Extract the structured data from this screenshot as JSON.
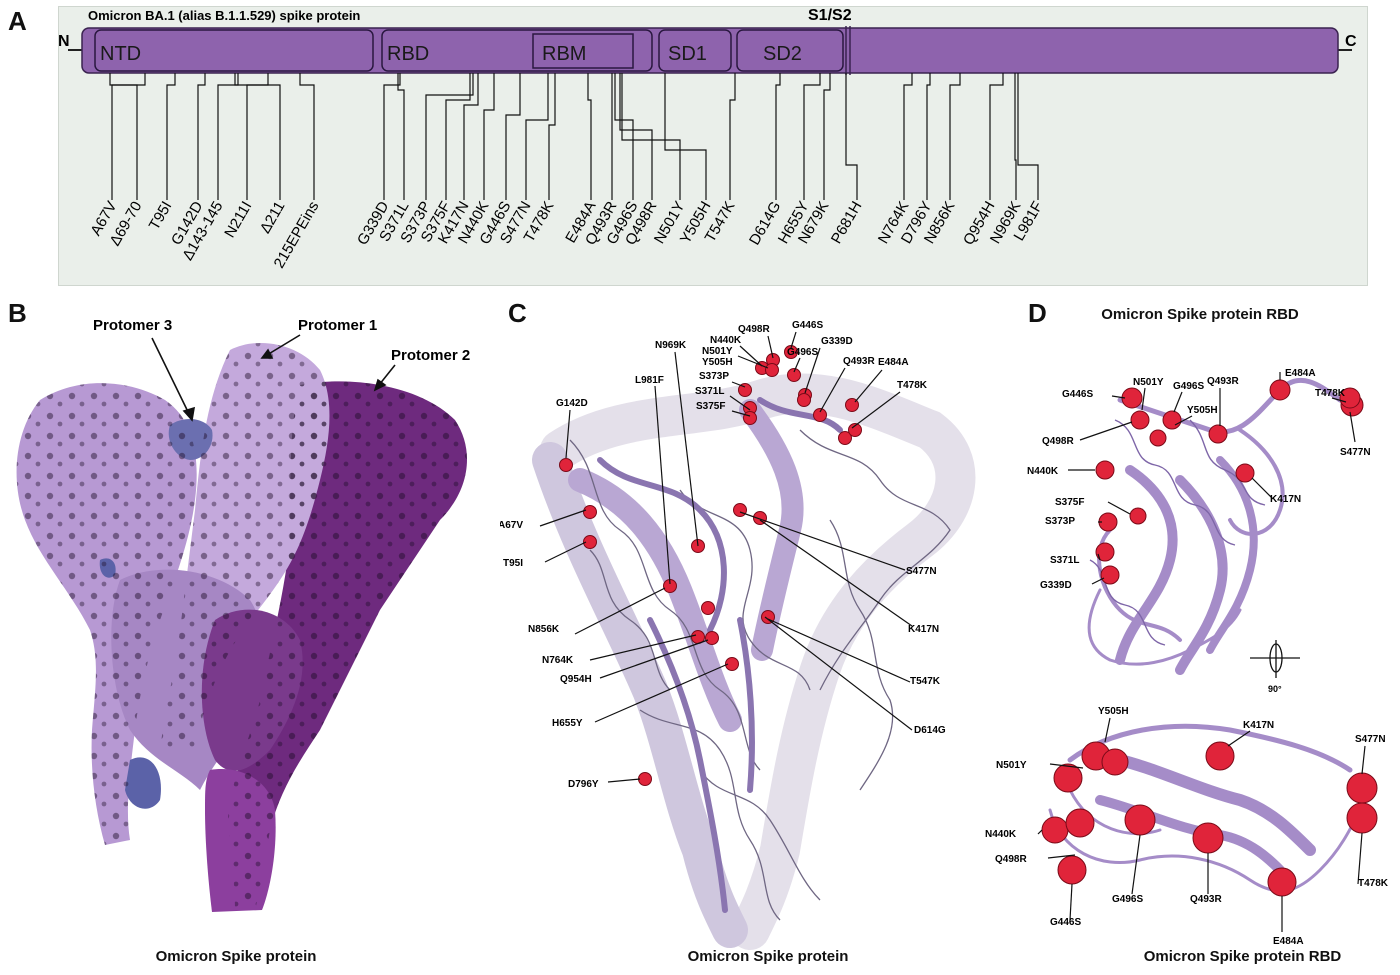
{
  "panels": {
    "a": "A",
    "b": "B",
    "c": "C",
    "d": "D"
  },
  "panelA": {
    "title": "Omicron BA.1 (alias B.1.1.529) spike protein",
    "s1s2": "S1/S2",
    "n_term": "N",
    "c_term": "C",
    "domains": {
      "ntd": "NTD",
      "rbd": "RBD",
      "rbm": "RBM",
      "sd1": "SD1",
      "sd2": "SD2"
    },
    "mutations": [
      "A67V",
      "Δ69-70",
      "T95I",
      "G142D",
      "Δ143-145",
      "N211I",
      "Δ211",
      "215EPEins",
      "G339D",
      "S371L",
      "S373P",
      "S375F",
      "K417N",
      "N440K",
      "G446S",
      "S477N",
      "T478K",
      "E484A",
      "Q493R",
      "G496S",
      "Q498R",
      "N501Y",
      "Y505H",
      "T547K",
      "D614G",
      "H655Y",
      "N679K",
      "P681H",
      "N764K",
      "D796Y",
      "N856K",
      "Q954H",
      "N969K",
      "L981F"
    ]
  },
  "panelB": {
    "protomer3": "Protomer 3",
    "protomer1": "Protomer 1",
    "protomer2": "Protomer 2",
    "caption": "Omicron Spike protein"
  },
  "panelC": {
    "labels": {
      "q498r": "Q498R",
      "g446s": "G446S",
      "n440k": "N440K",
      "g339d": "G339D",
      "n969k": "N969K",
      "n501y": "N501Y",
      "g496s": "G496S",
      "y505h": "Y505H",
      "q493r": "Q493R",
      "e484a": "E484A",
      "s373p": "S373P",
      "l981f": "L981F",
      "s371l": "S371L",
      "t478k": "T478K",
      "s375f": "S375F",
      "g142d": "G142D",
      "a67v": "A67V",
      "t95i": "T95I",
      "s477n": "S477N",
      "n856k": "N856K",
      "k417n": "K417N",
      "n764k": "N764K",
      "q954h": "Q954H",
      "t547k": "T547K",
      "h655y": "H655Y",
      "d614g": "D614G",
      "d796y": "D796Y"
    },
    "caption": "Omicron Spike protein"
  },
  "panelD": {
    "title": "Omicron Spike protein RBD",
    "top": {
      "e484a": "E484A",
      "t478k": "T478K",
      "g446s": "G446S",
      "n501y": "N501Y",
      "g496s": "G496S",
      "q493r": "Q493R",
      "y505h": "Y505H",
      "q498r": "Q498R",
      "s477n": "S477N",
      "n440k": "N440K",
      "k417n": "K417N",
      "s375f": "S375F",
      "s373p": "S373P",
      "s371l": "S371L",
      "g339d": "G339D"
    },
    "rotation": "90°",
    "bottom": {
      "y505h": "Y505H",
      "k417n": "K417N",
      "s477n": "S477N",
      "n501y": "N501Y",
      "n440k": "N440K",
      "q498r": "Q498R",
      "t478k": "T478K",
      "g446s": "G446S",
      "g496s": "G496S",
      "q493r": "Q493R",
      "e484a": "E484A"
    },
    "caption": "Omicron Spike protein RBD"
  },
  "colors": {
    "domain_fill": "#8e63ad",
    "protomer_light": "#bfa2d6",
    "protomer_dark": "#6e2a7e",
    "protomer_blue": "#6b6fb0",
    "mutation_red": "#e0243a",
    "ribbon": "#9b84c0"
  }
}
